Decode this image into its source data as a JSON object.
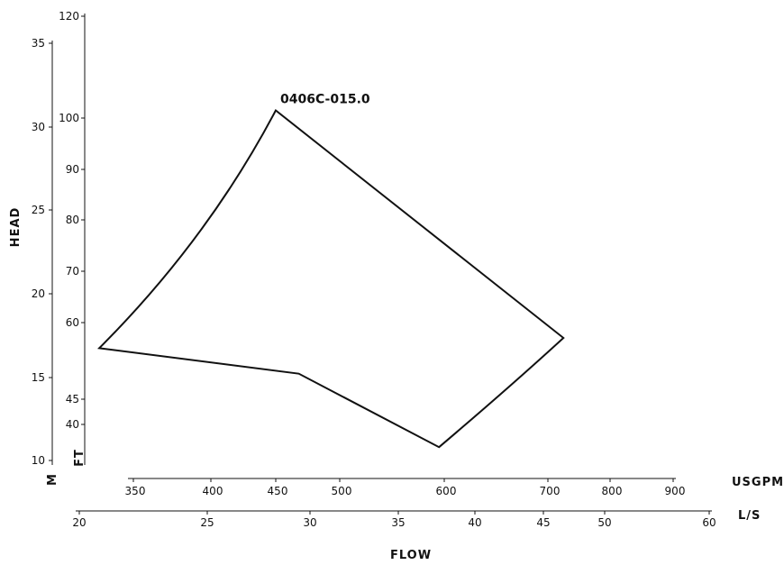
{
  "chart_data": {
    "type": "line",
    "curve_label": "0406C-015.0",
    "y_title": "HEAD",
    "x_title": "FLOW",
    "y_axes": [
      {
        "unit": "M",
        "ticks": [
          10,
          15,
          20,
          25,
          30,
          35
        ]
      },
      {
        "unit": "FT",
        "ticks": [
          40,
          45,
          60,
          70,
          80,
          90,
          100,
          120
        ]
      }
    ],
    "x_axes": [
      {
        "unit": "USGPM",
        "ticks": [
          350,
          400,
          450,
          500,
          600,
          700,
          800,
          900
        ]
      },
      {
        "unit": "L/S",
        "ticks": [
          20,
          25,
          30,
          35,
          40,
          45,
          50,
          60
        ]
      }
    ],
    "series": [
      {
        "unit_x": "USGPM",
        "unit_y": "FT",
        "x": [
          328,
          450,
          725,
          595,
          468,
          328
        ],
        "y": [
          55,
          101.5,
          57,
          35.5,
          50,
          55
        ]
      }
    ]
  }
}
